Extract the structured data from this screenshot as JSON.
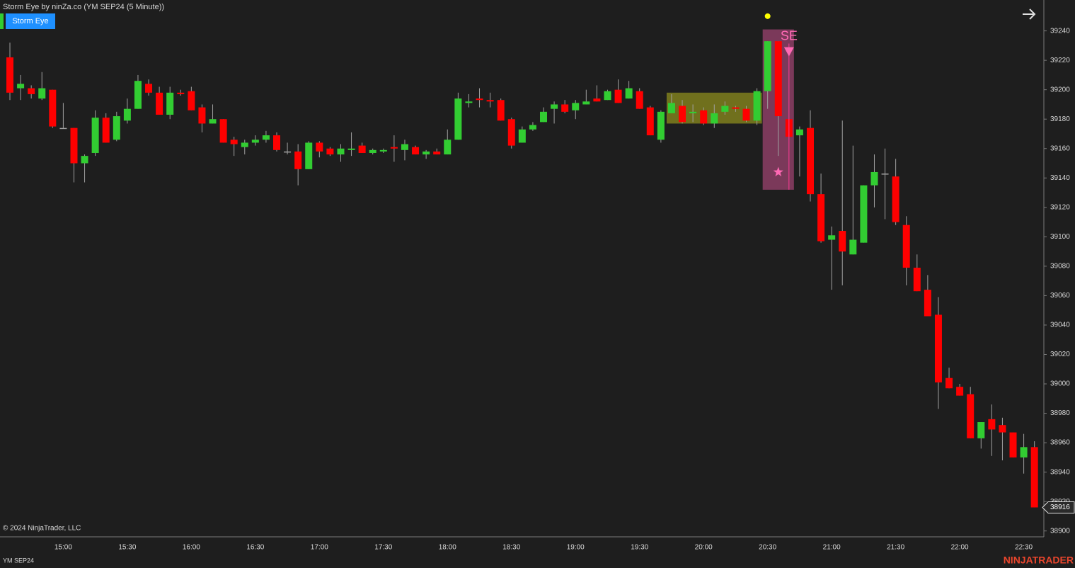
{
  "chart_data": {
    "type": "candlestick",
    "title": "Storm Eye by ninZa.co (YM SEP24 (5 Minute))",
    "button": "Storm Eye",
    "copyright": "© 2024 NinjaTrader, LLC",
    "instrument": "YM SEP24",
    "brand": "NINJATRADER",
    "categories": [
      null,
      null,
      null,
      null,
      null,
      "15:00",
      null,
      null,
      null,
      null,
      null,
      "15:30",
      null,
      null,
      null,
      null,
      null,
      "16:00",
      null,
      null,
      null,
      null,
      null,
      "16:30",
      null,
      null,
      null,
      null,
      null,
      "17:00",
      null,
      null,
      null,
      null,
      null,
      "17:30",
      null,
      null,
      null,
      null,
      null,
      "18:00",
      null,
      null,
      null,
      null,
      null,
      "18:30",
      null,
      null,
      null,
      null,
      null,
      "19:00",
      null,
      null,
      null,
      null,
      null,
      "19:30",
      null,
      null,
      null,
      null,
      null,
      "20:00",
      null,
      null,
      null,
      null,
      null,
      "20:30",
      null,
      null,
      null,
      null,
      null,
      "21:00",
      null,
      null,
      null,
      null,
      null,
      "21:30",
      null,
      null,
      null,
      null,
      null,
      "22:00",
      null,
      null,
      null,
      null,
      null,
      "22:30",
      null
    ],
    "open": [
      39222,
      39201,
      39201,
      39194,
      39200,
      39174,
      39174,
      39150,
      39157,
      39181,
      39166,
      39179,
      39187,
      39204,
      39198,
      39183,
      39198,
      39199,
      39188,
      39177,
      39180,
      39166,
      39161,
      39164,
      39166,
      39169,
      39158,
      39158,
      39146,
      39164,
      39160,
      39156,
      39159,
      39162,
      39157,
      39158,
      39161,
      39159,
      39161,
      39156,
      39158,
      39156,
      39166,
      39191,
      39194,
      39193,
      39193,
      39180,
      39164,
      39173,
      39178,
      39187,
      39190,
      39186,
      39190,
      39194,
      39193,
      39200,
      39194,
      39199,
      39188,
      39166,
      39184,
      39189,
      39184,
      39186,
      39177,
      39185,
      39188,
      39187,
      39179,
      39199,
      39233,
      39180,
      39169,
      39174,
      39129,
      39098,
      39104,
      39088,
      39096,
      39135,
      39143,
      39141,
      39108,
      39079,
      39064,
      39047,
      39004,
      38998,
      38993,
      38963,
      38976,
      38972,
      38967,
      38950,
      38957
    ],
    "high": [
      39232,
      39210,
      39203,
      39212,
      39200,
      39191,
      39174,
      39156,
      39186,
      39184,
      39185,
      39194,
      39210,
      39207,
      39202,
      39202,
      39200,
      39202,
      39190,
      39190,
      39180,
      39168,
      39166,
      39169,
      39172,
      39171,
      39164,
      39163,
      39165,
      39165,
      39161,
      39163,
      39171,
      39164,
      39160,
      39160,
      39169,
      39166,
      39162,
      39159,
      39160,
      39173,
      39198,
      39197,
      39201,
      39198,
      39194,
      39181,
      39175,
      39178,
      39188,
      39192,
      39193,
      39193,
      39200,
      39203,
      39200,
      39207,
      39206,
      39201,
      39189,
      39186,
      39197,
      39193,
      39190,
      39188,
      39190,
      39192,
      39189,
      39189,
      39201,
      39233,
      39233,
      39180,
      39175,
      39186,
      39143,
      39107,
      39179,
      39162,
      39135,
      39156,
      39160,
      39153,
      39114,
      39088,
      39074,
      39059,
      39011,
      39000,
      38998,
      38974,
      38986,
      38977,
      38967,
      38966,
      38961
    ],
    "low": [
      39193,
      39193,
      39194,
      39193,
      39174,
      39174,
      39137,
      39137,
      39155,
      39164,
      39165,
      39177,
      39187,
      39196,
      39183,
      39180,
      39196,
      39186,
      39171,
      39177,
      39164,
      39155,
      39156,
      39162,
      39164,
      39158,
      39156,
      39135,
      39146,
      39154,
      39155,
      39151,
      39155,
      39157,
      39156,
      39157,
      39151,
      39152,
      39156,
      39153,
      39156,
      39156,
      39166,
      39188,
      39188,
      39188,
      39179,
      39160,
      39164,
      39172,
      39178,
      39177,
      39184,
      39180,
      39190,
      39192,
      39193,
      39191,
      39194,
      39187,
      39169,
      39164,
      39184,
      39177,
      39178,
      39176,
      39174,
      39183,
      39185,
      39178,
      39176,
      39187,
      39155,
      39168,
      39141,
      39124,
      39096,
      39064,
      39067,
      39088,
      39096,
      39120,
      39112,
      39108,
      39067,
      39063,
      39046,
      38983,
      38997,
      38992,
      38963,
      38956,
      38951,
      38948,
      38950,
      38939,
      38916
    ],
    "close": [
      39198,
      39204,
      39197,
      39201,
      39175,
      39174,
      39150,
      39155,
      39181,
      39164,
      39182,
      39187,
      39206,
      39198,
      39183,
      39198,
      39197,
      39186,
      39177,
      39180,
      39164,
      39163,
      39164,
      39166,
      39169,
      39159,
      39158,
      39146,
      39164,
      39158,
      39156,
      39160,
      39160,
      39157,
      39159,
      39159,
      39160,
      39163,
      39156,
      39158,
      39156,
      39166,
      39194,
      39192,
      39193,
      39192,
      39179,
      39162,
      39173,
      39176,
      39185,
      39190,
      39185,
      39191,
      39192,
      39192,
      39199,
      39191,
      39201,
      39187,
      39169,
      39185,
      39191,
      39178,
      39185,
      39177,
      39184,
      39189,
      39187,
      39179,
      39199,
      39233,
      39182,
      39168,
      39173,
      39129,
      39097,
      39101,
      39090,
      39098,
      39135,
      39144,
      39143,
      39110,
      39079,
      39063,
      39046,
      39001,
      38997,
      38992,
      38963,
      38974,
      38969,
      38967,
      38950,
      38957,
      38916
    ],
    "up_color": "#32cd32",
    "down_color": "#ff0000",
    "wick_color": "#a0a0a0",
    "ylim": [
      38896,
      39261
    ],
    "yticks": [
      38900,
      38920,
      38940,
      38960,
      38980,
      39000,
      39020,
      39040,
      39060,
      39080,
      39100,
      39120,
      39140,
      39160,
      39180,
      39200,
      39220,
      39240
    ],
    "last_price": 38916,
    "zones": [
      {
        "top": 39198,
        "bottom": 39177,
        "color": "#b4b41e"
      },
      {
        "top": 39241,
        "bottom": 39132,
        "color": "#c8508c"
      }
    ],
    "signal_label": "SE",
    "signal_triangle": 39226,
    "signal_star": 39144,
    "signal_dot": 39250
  }
}
